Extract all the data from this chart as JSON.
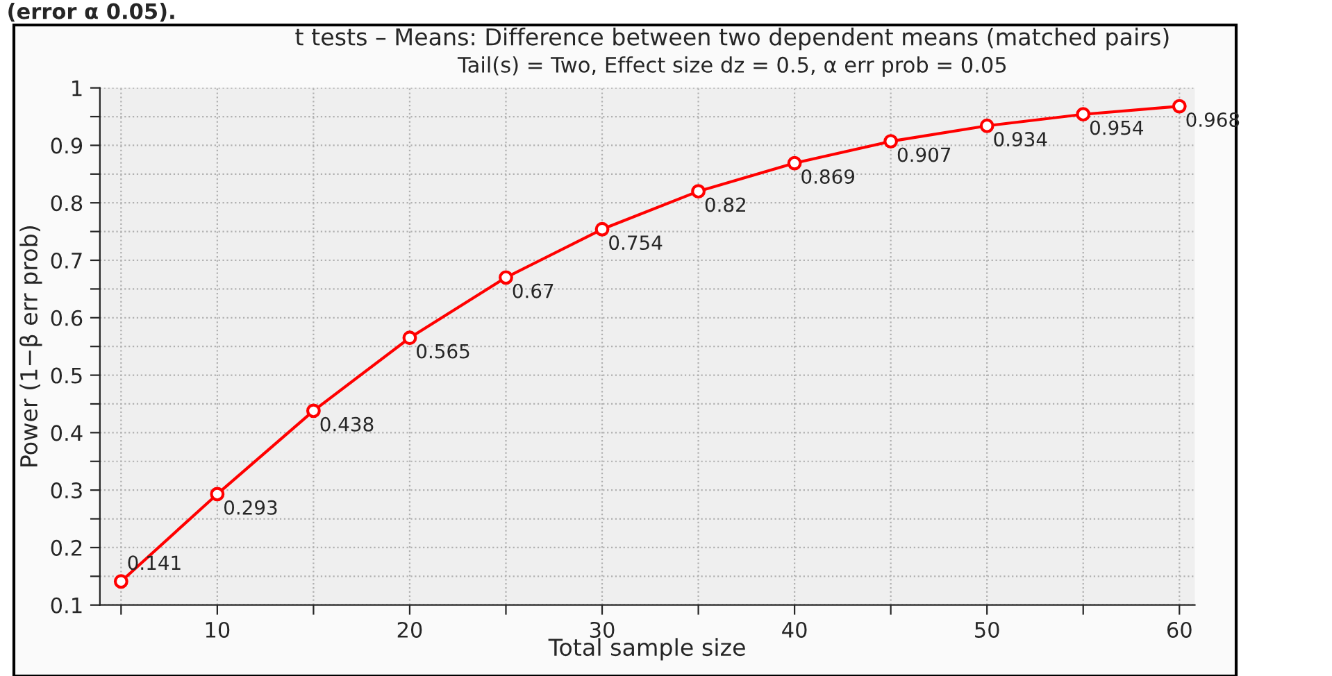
{
  "chart_data": {
    "type": "line",
    "title": "t tests – Means: Difference between two dependent means (matched pairs)",
    "subtitle": "Tail(s) = Two, Effect size dz = 0.5, α err prob = 0.05",
    "xlabel": "Total sample size",
    "ylabel": "Power (1−β err prob)",
    "annotations": [
      "(error α 0.05)."
    ],
    "x": [
      5,
      10,
      15,
      20,
      25,
      30,
      35,
      40,
      45,
      50,
      55,
      60
    ],
    "series": [
      {
        "color": "#ff0000",
        "values": [
          0.141,
          0.293,
          0.438,
          0.565,
          0.67,
          0.754,
          0.82,
          0.869,
          0.907,
          0.934,
          0.954,
          0.968
        ]
      }
    ],
    "data_labels": true,
    "marker": "circle",
    "line_style": "solid",
    "grid": true,
    "xlim": [
      3.9,
      60.8
    ],
    "ylim": [
      0.1,
      1.0
    ],
    "xticks": [
      {
        "value": 5,
        "label": null
      },
      10,
      {
        "value": 15,
        "label": null
      },
      20,
      {
        "value": 25,
        "label": null
      },
      30,
      {
        "value": 35,
        "label": null
      },
      40,
      {
        "value": 45,
        "label": null
      },
      50,
      {
        "value": 55,
        "label": null
      },
      60
    ],
    "yticks": [
      0.1,
      {
        "value": 0.15,
        "label": null
      },
      0.2,
      {
        "value": 0.25,
        "label": null
      },
      0.3,
      {
        "value": 0.35,
        "label": null
      },
      0.4,
      {
        "value": 0.45,
        "label": null
      },
      0.5,
      {
        "value": 0.55,
        "label": null
      },
      0.6,
      {
        "value": 0.65,
        "label": null
      },
      0.7,
      {
        "value": 0.75,
        "label": null
      },
      0.8,
      {
        "value": 0.85,
        "label": null
      },
      0.9,
      {
        "value": 0.95,
        "label": null
      },
      1
    ]
  }
}
